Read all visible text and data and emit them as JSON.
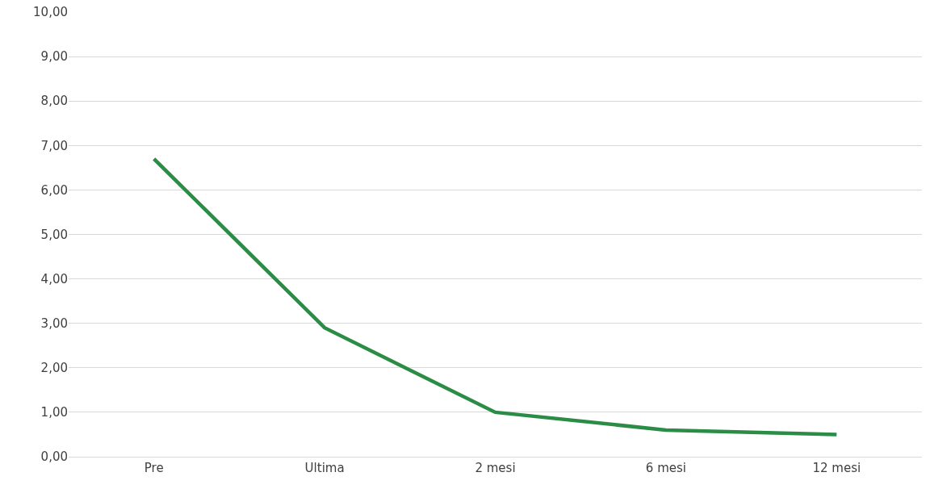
{
  "chart_data": {
    "type": "line",
    "categories": [
      "Pre",
      "Ultima",
      "2 mesi",
      "6 mesi",
      "12 mesi"
    ],
    "series": [
      {
        "color": "#2a8c45",
        "values": [
          6.7,
          2.9,
          1.0,
          0.6,
          0.5
        ]
      }
    ],
    "ylim": [
      0,
      10
    ],
    "yticks": [
      {
        "value": 0,
        "label": "0,00"
      },
      {
        "value": 1,
        "label": "1,00"
      },
      {
        "value": 2,
        "label": "2,00"
      },
      {
        "value": 3,
        "label": "3,00"
      },
      {
        "value": 4,
        "label": "4,00"
      },
      {
        "value": 5,
        "label": "5,00"
      },
      {
        "value": 6,
        "label": "6,00"
      },
      {
        "value": 7,
        "label": "7,00"
      },
      {
        "value": 8,
        "label": "8,00"
      },
      {
        "value": 9,
        "label": "9,00"
      },
      {
        "value": 10,
        "label": "10,00"
      }
    ],
    "grid": "y",
    "marker": "none",
    "line_style": "solid"
  }
}
